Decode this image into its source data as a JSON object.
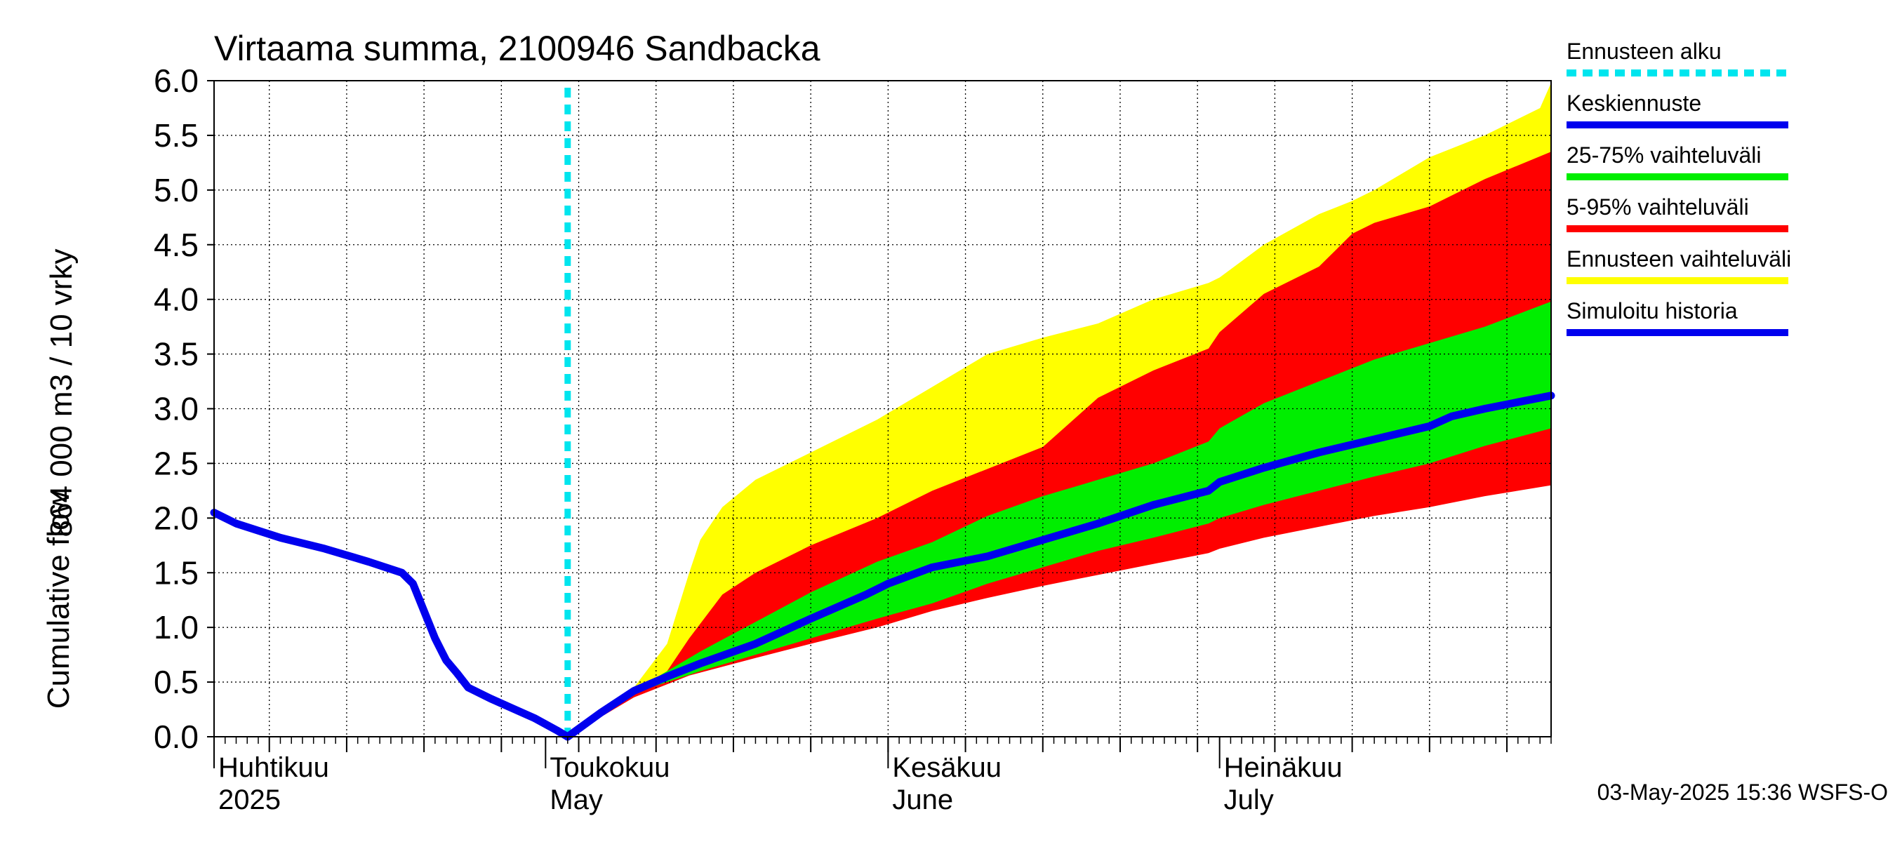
{
  "chart_data": {
    "type": "area",
    "title": "Virtaama summa, 2100946 Sandbacka",
    "ylabel_line1": "864 000 m3 / 10 vrky",
    "ylabel_line2": "Cumulative flow",
    "ylim": [
      0,
      6
    ],
    "yticks": [
      "0.0",
      "0.5",
      "1.0",
      "1.5",
      "2.0",
      "2.5",
      "3.0",
      "3.5",
      "4.0",
      "4.5",
      "5.0",
      "5.5",
      "6.0"
    ],
    "x_axis": {
      "start": "2025-04-01",
      "end": "2025-07-31",
      "month_labels": [
        {
          "date": "2025-04-01",
          "fi": "Huhtikuu",
          "en": "2025"
        },
        {
          "date": "2025-05-01",
          "fi": "Toukokuu",
          "en": "May"
        },
        {
          "date": "2025-06-01",
          "fi": "Kesäkuu",
          "en": "June"
        },
        {
          "date": "2025-07-01",
          "fi": "Heinäkuu",
          "en": "July"
        }
      ]
    },
    "forecast_start": "2025-05-03",
    "grid": true,
    "legend_placement": "right",
    "colors": {
      "forecast_start": "#00e5ee",
      "median": "#0000ee",
      "band_25_75": "#00ee00",
      "band_5_95": "#ff0000",
      "band_full": "#ffff00",
      "history": "#0000ee"
    },
    "legend": [
      {
        "label": "Ennusteen alku",
        "key": "forecast_start",
        "style": "dashed"
      },
      {
        "label": "Keskiennuste",
        "key": "median",
        "style": "solid"
      },
      {
        "label": "25-75% vaihteluväli",
        "key": "band_25_75",
        "style": "solid"
      },
      {
        "label": "5-95% vaihteluväli",
        "key": "band_5_95",
        "style": "solid"
      },
      {
        "label": "Ennusteen vaihteluväli",
        "key": "band_full",
        "style": "solid"
      },
      {
        "label": "Simuloitu historia",
        "key": "history",
        "style": "solid"
      }
    ],
    "series": [
      {
        "name": "Simuloitu historia",
        "x": [
          "2025-04-01",
          "2025-04-03",
          "2025-04-07",
          "2025-04-11",
          "2025-04-15",
          "2025-04-18",
          "2025-04-19",
          "2025-04-20",
          "2025-04-21",
          "2025-04-22",
          "2025-04-23",
          "2025-04-24",
          "2025-04-26",
          "2025-04-28",
          "2025-04-30",
          "2025-05-02",
          "2025-05-03"
        ],
        "y": [
          2.05,
          1.95,
          1.82,
          1.72,
          1.6,
          1.5,
          1.4,
          1.15,
          0.9,
          0.7,
          0.58,
          0.45,
          0.35,
          0.26,
          0.17,
          0.06,
          0.0
        ]
      },
      {
        "name": "Keskiennuste",
        "x": [
          "2025-05-03",
          "2025-05-06",
          "2025-05-09",
          "2025-05-12",
          "2025-05-15",
          "2025-05-20",
          "2025-05-25",
          "2025-05-30",
          "2025-06-01",
          "2025-06-05",
          "2025-06-10",
          "2025-06-15",
          "2025-06-20",
          "2025-06-25",
          "2025-06-30",
          "2025-07-01",
          "2025-07-05",
          "2025-07-10",
          "2025-07-15",
          "2025-07-20",
          "2025-07-22",
          "2025-07-25",
          "2025-07-31"
        ],
        "y": [
          0.0,
          0.22,
          0.42,
          0.55,
          0.67,
          0.85,
          1.08,
          1.3,
          1.4,
          1.55,
          1.65,
          1.8,
          1.95,
          2.12,
          2.25,
          2.33,
          2.46,
          2.6,
          2.72,
          2.84,
          2.93,
          3.0,
          3.12
        ]
      },
      {
        "name": "Ennusteen vaihteluväli",
        "x": [
          "2025-05-03",
          "2025-05-09",
          "2025-05-12",
          "2025-05-14",
          "2025-05-15",
          "2025-05-17",
          "2025-05-20",
          "2025-05-25",
          "2025-05-31",
          "2025-06-05",
          "2025-06-10",
          "2025-06-15",
          "2025-06-20",
          "2025-06-25",
          "2025-06-30",
          "2025-07-01",
          "2025-07-05",
          "2025-07-10",
          "2025-07-13",
          "2025-07-15",
          "2025-07-20",
          "2025-07-25",
          "2025-07-30",
          "2025-07-31"
        ],
        "upper": [
          0.0,
          0.45,
          0.85,
          1.5,
          1.8,
          2.1,
          2.35,
          2.6,
          2.9,
          3.2,
          3.5,
          3.65,
          3.78,
          4.0,
          4.15,
          4.2,
          4.5,
          4.78,
          4.9,
          5.0,
          5.3,
          5.5,
          5.75,
          5.98
        ],
        "lower": [
          0.0,
          0.38,
          0.52,
          0.6,
          0.65,
          0.7,
          0.78,
          0.9,
          1.05,
          1.2,
          1.32,
          1.43,
          1.55,
          1.65,
          1.75,
          1.78,
          1.86,
          1.96,
          2.02,
          2.06,
          2.14,
          2.22,
          2.32,
          2.35
        ]
      },
      {
        "name": "5-95% vaihteluväli",
        "x": [
          "2025-05-03",
          "2025-05-09",
          "2025-05-12",
          "2025-05-14",
          "2025-05-17",
          "2025-05-20",
          "2025-05-25",
          "2025-05-31",
          "2025-06-05",
          "2025-06-10",
          "2025-06-15",
          "2025-06-20",
          "2025-06-25",
          "2025-06-30",
          "2025-07-01",
          "2025-07-05",
          "2025-07-10",
          "2025-07-13",
          "2025-07-15",
          "2025-07-20",
          "2025-07-25",
          "2025-07-31"
        ],
        "upper": [
          0.0,
          0.38,
          0.6,
          0.9,
          1.3,
          1.5,
          1.75,
          2.0,
          2.25,
          2.45,
          2.65,
          3.1,
          3.35,
          3.55,
          3.7,
          4.05,
          4.3,
          4.6,
          4.7,
          4.85,
          5.1,
          5.35
        ],
        "lower": [
          0.0,
          0.36,
          0.48,
          0.56,
          0.64,
          0.72,
          0.85,
          1.0,
          1.15,
          1.27,
          1.38,
          1.48,
          1.58,
          1.68,
          1.72,
          1.82,
          1.92,
          1.98,
          2.02,
          2.1,
          2.2,
          2.3
        ]
      },
      {
        "name": "25-75% vaihteluväli",
        "x": [
          "2025-05-03",
          "2025-05-09",
          "2025-05-12",
          "2025-05-15",
          "2025-05-20",
          "2025-05-25",
          "2025-05-31",
          "2025-06-05",
          "2025-06-10",
          "2025-06-15",
          "2025-06-20",
          "2025-06-25",
          "2025-06-30",
          "2025-07-01",
          "2025-07-05",
          "2025-07-10",
          "2025-07-15",
          "2025-07-20",
          "2025-07-25",
          "2025-07-31"
        ],
        "upper": [
          0.0,
          0.42,
          0.6,
          0.78,
          1.05,
          1.32,
          1.6,
          1.78,
          2.02,
          2.2,
          2.35,
          2.5,
          2.7,
          2.82,
          3.05,
          3.25,
          3.45,
          3.6,
          3.75,
          3.98
        ],
        "lower": [
          0.0,
          0.4,
          0.5,
          0.6,
          0.75,
          0.9,
          1.08,
          1.22,
          1.4,
          1.55,
          1.7,
          1.82,
          1.95,
          2.0,
          2.12,
          2.25,
          2.38,
          2.5,
          2.66,
          2.82
        ]
      }
    ],
    "footer_timestamp": "03-May-2025 15:36 WSFS-O"
  }
}
